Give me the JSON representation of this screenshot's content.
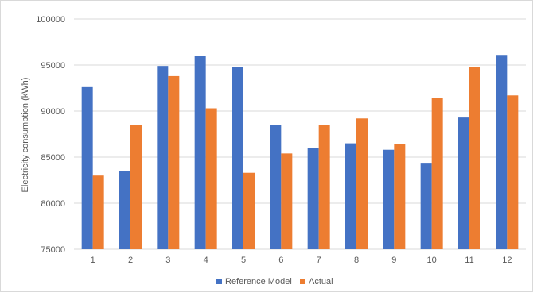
{
  "chart_data": {
    "type": "bar",
    "title": "",
    "xlabel": "",
    "ylabel": "Electricity consumption  (kWh)",
    "categories": [
      "1",
      "2",
      "3",
      "4",
      "5",
      "6",
      "7",
      "8",
      "9",
      "10",
      "11",
      "12"
    ],
    "series": [
      {
        "name": "Reference Model",
        "color": "#4472c4",
        "values": [
          92600,
          83500,
          94900,
          96000,
          94800,
          88500,
          86000,
          86500,
          85800,
          84300,
          89300,
          96100
        ]
      },
      {
        "name": "Actual",
        "color": "#ed7d31",
        "values": [
          83000,
          88500,
          93800,
          90300,
          83300,
          85400,
          88500,
          89200,
          86400,
          91400,
          94800,
          91700
        ]
      }
    ],
    "ylim": [
      75000,
      100000
    ],
    "yticks": [
      75000,
      80000,
      85000,
      90000,
      95000,
      100000
    ],
    "grid": true,
    "legend_position": "bottom"
  }
}
